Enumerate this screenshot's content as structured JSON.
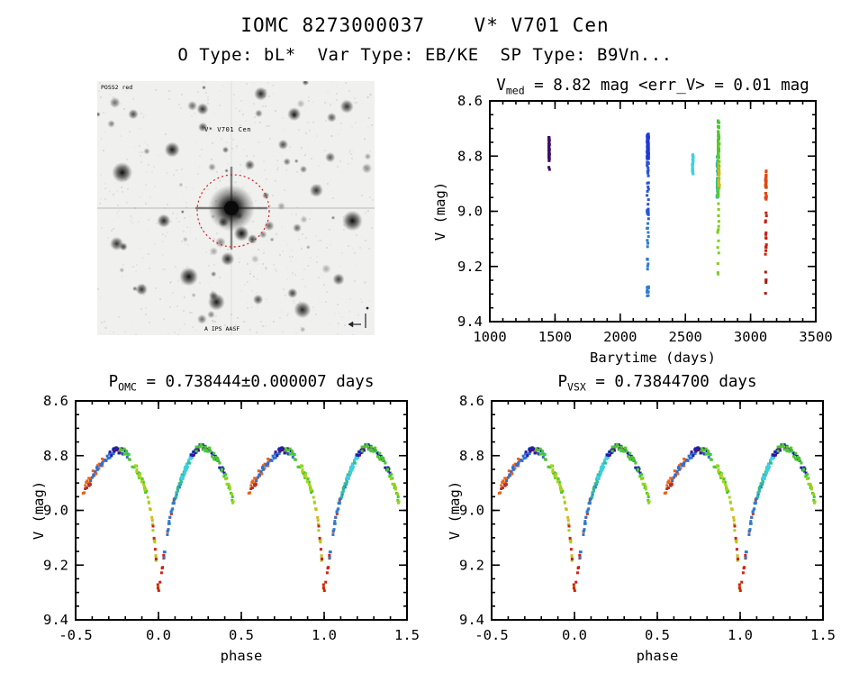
{
  "header": {
    "title": "IOMC 8273000037    V* V701 Cen",
    "subtitle": "O Type: bL*  Var Type: EB/KE  SP Type: B9Vn..."
  },
  "finder": {
    "target_label": "V* V701 Cen",
    "survey_label": "POSS2 red",
    "plate_label": "A IPS AASF",
    "circle_color": "#cc2222",
    "label_color": "#cc2222"
  },
  "chart_data": [
    {
      "id": "barytime",
      "type": "scatter",
      "title_parts": [
        {
          "t": "V"
        },
        {
          "sub": "med"
        },
        {
          "t": " = 8.82 mag <err_V> = 0.01 mag"
        }
      ],
      "xlabel": "Barytime (days)",
      "ylabel": "V (mag)",
      "xlim": [
        1000,
        3500
      ],
      "ylim": [
        8.6,
        9.4
      ],
      "y_inverted": true,
      "xticks_major": [
        1000,
        1500,
        2000,
        2500,
        3000,
        3500
      ],
      "xtick_labels": [
        "1000",
        "1500",
        "2000",
        "2500",
        "3000",
        "3500"
      ],
      "xtick_minor_step": 100,
      "yticks_major": [
        8.6,
        8.8,
        9.0,
        9.2,
        9.4
      ],
      "ytick_labels": [
        "8.6",
        "8.8",
        "9.0",
        "9.2",
        "9.4"
      ],
      "ytick_minor_step": 0.05,
      "clusters": [
        {
          "t": 1455,
          "spread": 3,
          "bands": [
            {
              "v0": 8.73,
              "v1": 8.82,
              "n": 46,
              "color": "#3d0f68"
            },
            {
              "v0": 8.83,
              "v1": 8.85,
              "n": 2,
              "color": "#3d0f68"
            }
          ]
        },
        {
          "t": 2212,
          "spread": 6,
          "bands": [
            {
              "v0": 8.72,
              "v1": 8.81,
              "n": 85,
              "color": "#2138d8"
            },
            {
              "v0": 8.82,
              "v1": 9.03,
              "n": 30,
              "color": "#2a55d4"
            },
            {
              "v0": 9.04,
              "v1": 9.13,
              "n": 9,
              "color": "#2f7bd0"
            },
            {
              "v0": 9.17,
              "v1": 9.31,
              "n": 16,
              "color": "#2f7bd0"
            }
          ]
        },
        {
          "t": 2556,
          "spread": 4,
          "bands": [
            {
              "v0": 8.79,
              "v1": 8.87,
              "n": 24,
              "color": "#3fd0e6"
            }
          ]
        },
        {
          "t": 2752,
          "spread": 5,
          "bands": [
            {
              "dt": 2,
              "v0": 8.67,
              "v1": 8.81,
              "n": 42,
              "color": "#4cc82e"
            },
            {
              "dt": -5,
              "v0": 8.79,
              "v1": 8.95,
              "n": 36,
              "color": "#2fbf92"
            },
            {
              "dt": 3,
              "v0": 8.75,
              "v1": 8.97,
              "n": 30,
              "color": "#5ecc22"
            },
            {
              "dt": 7,
              "v0": 8.82,
              "v1": 8.92,
              "n": 14,
              "color": "#d2b81e"
            },
            {
              "dt": 0,
              "v0": 8.97,
              "v1": 9.27,
              "n": 15,
              "color": "#7fce1e"
            }
          ]
        },
        {
          "t": 3118,
          "spread": 4,
          "bands": [
            {
              "v0": 8.85,
              "v1": 8.96,
              "n": 36,
              "color": "#e04812"
            },
            {
              "v0": 8.99,
              "v1": 9.17,
              "n": 13,
              "color": "#c8200e"
            },
            {
              "v0": 9.21,
              "v1": 9.33,
              "n": 5,
              "color": "#b01808"
            }
          ]
        }
      ]
    },
    {
      "id": "phase_omc",
      "type": "scatter",
      "title_parts": [
        {
          "t": "P"
        },
        {
          "sub": "OMC"
        },
        {
          "t": " = 0.738444±0.000007 days"
        }
      ],
      "xlabel": "phase",
      "ylabel": "V (mag)",
      "xlim": [
        -0.5,
        1.5
      ],
      "ylim": [
        8.6,
        9.4
      ],
      "y_inverted": true,
      "xticks_major": [
        -0.5,
        0.0,
        0.5,
        1.0,
        1.5
      ],
      "xtick_labels": [
        "-0.5",
        "0.0",
        "0.5",
        "1.0",
        "1.5"
      ],
      "xtick_minor_step": 0.1,
      "yticks_major": [
        8.6,
        8.8,
        9.0,
        9.2,
        9.4
      ],
      "ytick_labels": [
        "8.6",
        "8.8",
        "9.0",
        "9.2",
        "9.4"
      ],
      "ytick_minor_step": 0.05,
      "repeat_offset": 1.0,
      "curve_anchors": [
        [
          -0.46,
          8.935
        ],
        [
          -0.42,
          8.895
        ],
        [
          -0.38,
          8.855
        ],
        [
          -0.34,
          8.825
        ],
        [
          -0.3,
          8.8
        ],
        [
          -0.27,
          8.785
        ],
        [
          -0.24,
          8.78
        ],
        [
          -0.21,
          8.785
        ],
        [
          -0.18,
          8.805
        ],
        [
          -0.15,
          8.835
        ],
        [
          -0.12,
          8.865
        ],
        [
          -0.09,
          8.9
        ],
        [
          -0.06,
          8.965
        ],
        [
          -0.04,
          9.03
        ],
        [
          -0.02,
          9.13
        ],
        [
          -0.005,
          9.27
        ],
        [
          0.0,
          9.3
        ],
        [
          0.01,
          9.27
        ],
        [
          0.02,
          9.22
        ],
        [
          0.04,
          9.14
        ],
        [
          0.06,
          9.06
        ],
        [
          0.08,
          9.0
        ],
        [
          0.1,
          8.955
        ],
        [
          0.13,
          8.9
        ],
        [
          0.16,
          8.855
        ],
        [
          0.19,
          8.815
        ],
        [
          0.22,
          8.785
        ],
        [
          0.25,
          8.765
        ],
        [
          0.28,
          8.77
        ],
        [
          0.31,
          8.785
        ],
        [
          0.34,
          8.805
        ],
        [
          0.37,
          8.835
        ],
        [
          0.4,
          8.87
        ],
        [
          0.43,
          8.925
        ],
        [
          0.455,
          8.975
        ]
      ],
      "series": [
        {
          "color": "#e8641b",
          "p0": -0.455,
          "p1": -0.325,
          "n": 24,
          "jit": 0.016
        },
        {
          "color": "#b03226",
          "p0": -0.445,
          "p1": -0.405,
          "n": 5,
          "jit": 0.012,
          "dv": 0.01
        },
        {
          "color": "#2f6fd4",
          "p0": -0.415,
          "p1": -0.175,
          "n": 34,
          "jit": 0.013
        },
        {
          "color": "#1c1fae",
          "p0": -0.3,
          "p1": -0.19,
          "n": 10,
          "jit": 0.012
        },
        {
          "color": "#4a1180",
          "p0": -0.275,
          "p1": -0.215,
          "n": 5,
          "jit": 0.01
        },
        {
          "color": "#4cc82e",
          "p0": -0.235,
          "p1": -0.065,
          "n": 24,
          "jit": 0.014
        },
        {
          "color": "#a8d41c",
          "p0": -0.145,
          "p1": -0.01,
          "n": 20,
          "jit": 0.01
        },
        {
          "color": "#d2b81e",
          "p0": -0.05,
          "p1": 0.005,
          "n": 9,
          "jit": 0.01
        },
        {
          "color": "#cf2310",
          "p0": -0.03,
          "p1": 0.035,
          "n": 13,
          "jit": 0.01
        },
        {
          "color": "#b03226",
          "p0": 0.05,
          "p1": 0.095,
          "n": 4,
          "jit": 0.008
        },
        {
          "color": "#2f7bd0",
          "p0": 0.035,
          "p1": 0.145,
          "n": 30,
          "jit": 0.011
        },
        {
          "color": "#2fbf92",
          "p0": 0.1,
          "p1": 0.2,
          "n": 24,
          "jit": 0.011
        },
        {
          "color": "#3fd0e6",
          "p0": 0.135,
          "p1": 0.235,
          "n": 22,
          "jit": 0.011
        },
        {
          "color": "#1c1fae",
          "p0": 0.19,
          "p1": 0.405,
          "n": 34,
          "jit": 0.013
        },
        {
          "color": "#4a1180",
          "p0": 0.21,
          "p1": 0.285,
          "n": 6,
          "jit": 0.01
        },
        {
          "color": "#4cc82e",
          "p0": 0.225,
          "p1": 0.45,
          "n": 36,
          "jit": 0.013
        },
        {
          "color": "#9ad41c",
          "p0": 0.405,
          "p1": 0.455,
          "n": 8,
          "jit": 0.012
        }
      ]
    },
    {
      "id": "phase_vsx",
      "type": "scatter",
      "title_parts": [
        {
          "t": "P"
        },
        {
          "sub": "VSX"
        },
        {
          "t": " = 0.73844700 days"
        }
      ],
      "xlabel": "phase",
      "ylabel": "V (mag)",
      "xlim": [
        -0.5,
        1.5
      ],
      "ylim": [
        8.6,
        9.4
      ],
      "y_inverted": true,
      "xticks_major": [
        -0.5,
        0.0,
        0.5,
        1.0,
        1.5
      ],
      "xtick_labels": [
        "-0.5",
        "0.0",
        "0.5",
        "1.0",
        "1.5"
      ],
      "xtick_minor_step": 0.1,
      "yticks_major": [
        8.6,
        8.8,
        9.0,
        9.2,
        9.4
      ],
      "ytick_labels": [
        "8.6",
        "8.8",
        "9.0",
        "9.2",
        "9.4"
      ],
      "ytick_minor_step": 0.05,
      "repeat_offset": 1.0,
      "same_data_as": "phase_omc"
    }
  ]
}
